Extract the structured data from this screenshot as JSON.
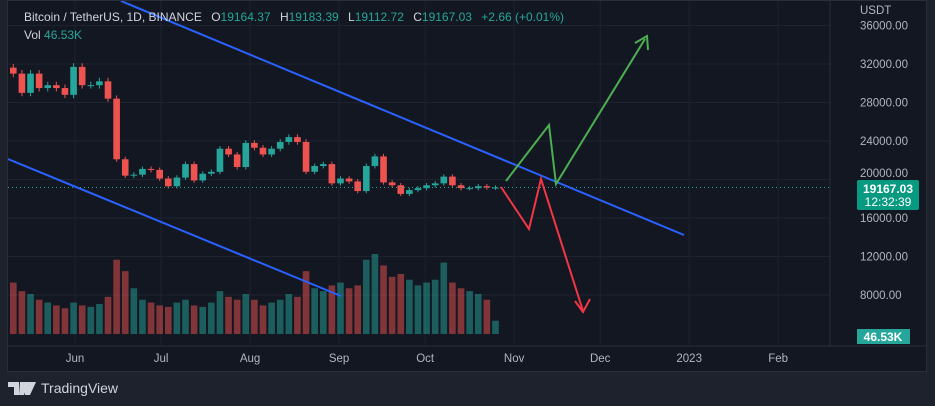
{
  "header": {
    "symbol": "Bitcoin / TetherUS, 1D, BINANCE",
    "open_label": "O",
    "open": "19164.37",
    "high_label": "H",
    "high": "19183.39",
    "low_label": "L",
    "low": "19112.72",
    "close_label": "C",
    "close": "19167.03",
    "change": "+2.66 (+0.01%)",
    "vol_label": "Vol",
    "vol": "46.53K"
  },
  "price_axis": {
    "currency": "USDT",
    "last_price": "19167.03",
    "countdown": "12:32:39",
    "volume_badge": "46.53K"
  },
  "footer": {
    "brand": "TradingView"
  },
  "colors": {
    "up": "#26a69a",
    "down": "#ef5350",
    "trendline": "#2962ff",
    "bull_path": "#4caf50",
    "bear_path": "#f23645",
    "background": "#131722"
  },
  "chart_data": {
    "type": "candlestick",
    "interval": "1D",
    "ylim": [
      5000,
      38000
    ],
    "yticks": [
      "36000.00",
      "32000.00",
      "28000.00",
      "24000.00",
      "20000.00",
      "16000.00",
      "12000.00",
      "8000.00"
    ],
    "ytick_values": [
      36000,
      32000,
      28000,
      24000,
      20000,
      16000,
      12000,
      8000
    ],
    "xticks": [
      "Jun",
      "Jul",
      "Aug",
      "Sep",
      "Oct",
      "Nov",
      "Dec",
      "2023",
      "Feb"
    ],
    "xtick_dates": [
      "2022-06-01",
      "2022-07-01",
      "2022-08-01",
      "2022-09-01",
      "2022-10-01",
      "2022-11-01",
      "2022-12-01",
      "2023-01-01",
      "2023-02-01"
    ],
    "x_range": [
      "2022-05-09",
      "2023-02-28"
    ],
    "start_date": "2022-05-09",
    "step_days": 3,
    "closes": [
      31000,
      29000,
      31000,
      29500,
      29800,
      29500,
      28800,
      31700,
      29800,
      29800,
      30200,
      28400,
      22100,
      20400,
      20500,
      21100,
      21000,
      20100,
      19300,
      20200,
      21600,
      19900,
      20600,
      20800,
      23200,
      22600,
      21300,
      23800,
      23300,
      22600,
      23200,
      23900,
      24400,
      23900,
      20800,
      21400,
      21600,
      19600,
      20100,
      19800,
      18800,
      21400,
      22400,
      19700,
      19400,
      18500,
      18900,
      19100,
      19400,
      19600,
      20300,
      19400,
      19100,
      19100,
      19300,
      19160,
      19167
    ],
    "volumes_k": [
      180,
      150,
      140,
      120,
      110,
      100,
      90,
      110,
      100,
      95,
      105,
      130,
      260,
      220,
      160,
      120,
      110,
      100,
      95,
      110,
      120,
      100,
      95,
      110,
      150,
      130,
      120,
      140,
      120,
      100,
      110,
      120,
      140,
      130,
      220,
      160,
      150,
      170,
      180,
      160,
      170,
      260,
      280,
      240,
      200,
      210,
      190,
      170,
      180,
      190,
      250,
      180,
      160,
      150,
      140,
      120,
      46.53
    ]
  }
}
